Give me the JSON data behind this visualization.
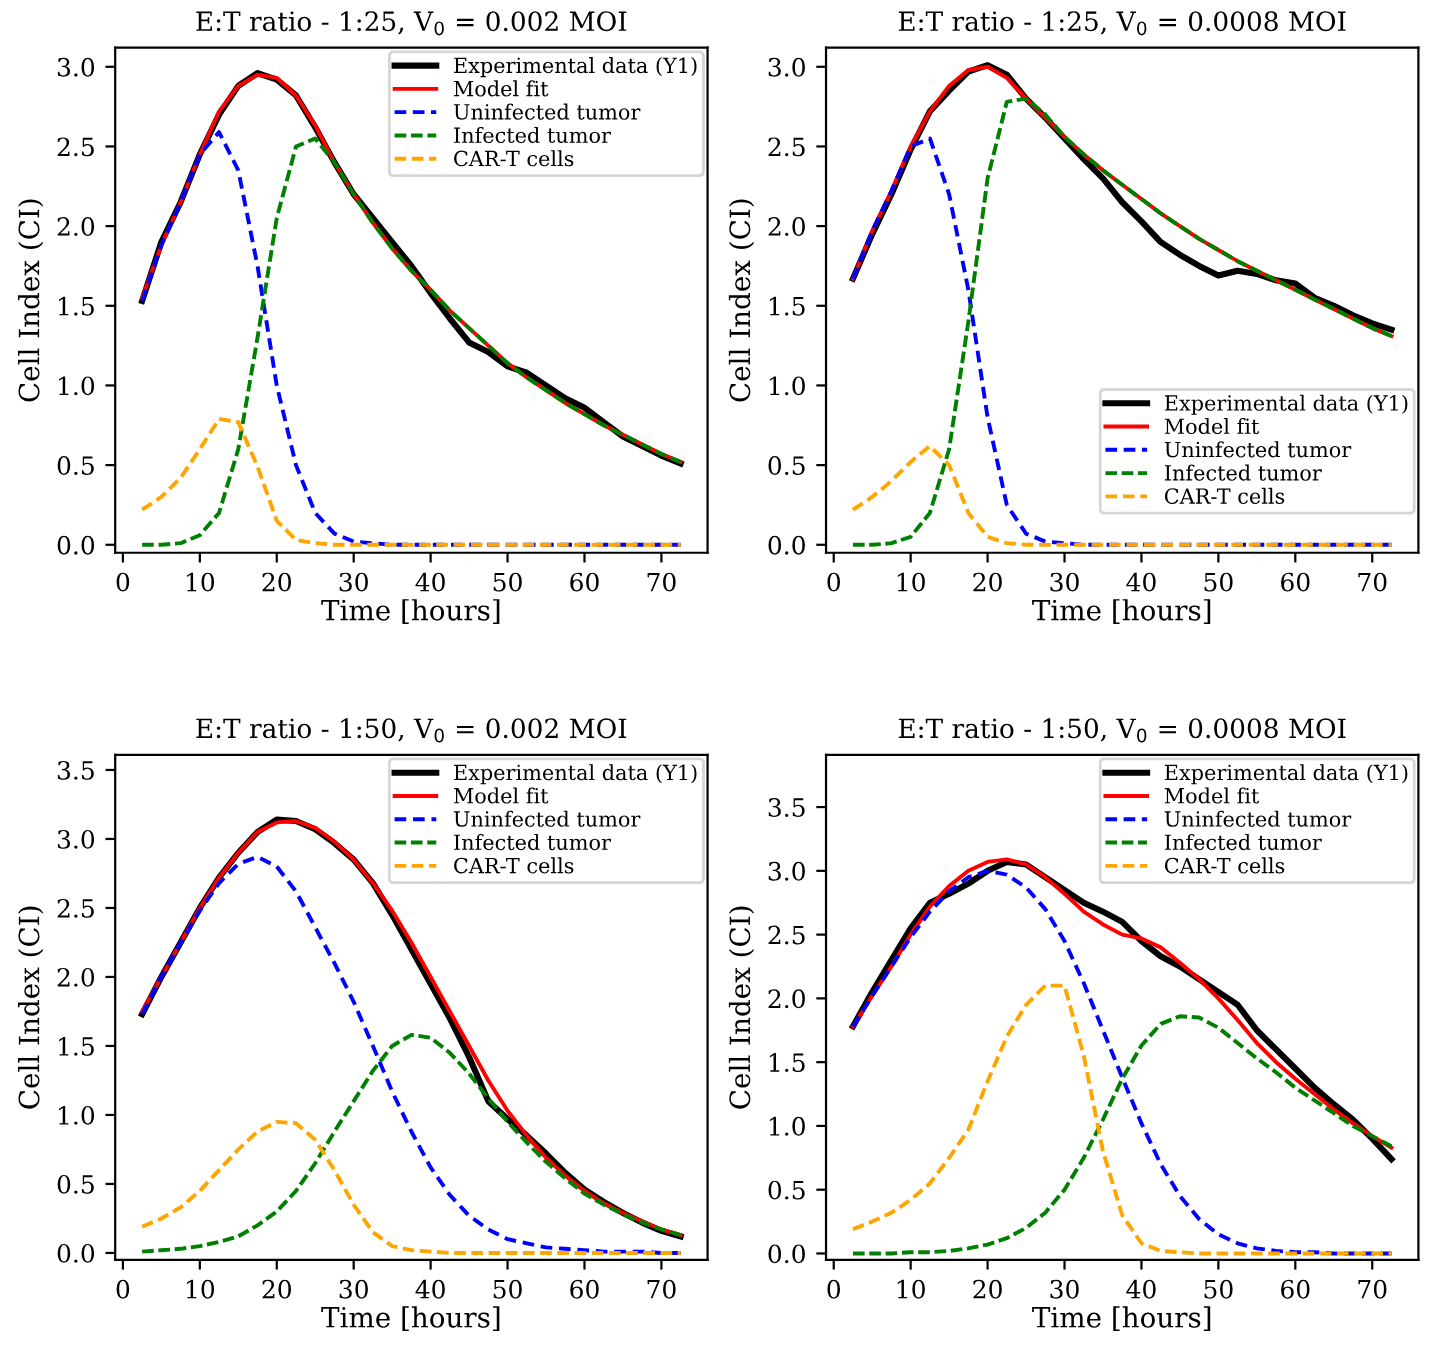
{
  "chart_data": [
    {
      "type": "line",
      "title": "E:T ratio - 1:25, V$_{0}$ = 0.002 MOI",
      "xlabel": "Time [hours]",
      "ylabel": "Cell Index (CI)",
      "legend": "top right",
      "grid": false,
      "marker": "none",
      "x": [
        2.5,
        5,
        7.5,
        10,
        12.5,
        15,
        17.5,
        20,
        22.5,
        25,
        27.5,
        30,
        32.5,
        35,
        37.5,
        40,
        42.5,
        45,
        47.5,
        50,
        52.5,
        55,
        57.5,
        60,
        62.5,
        65,
        67.5,
        70,
        72.5
      ],
      "xlim": [
        -1,
        76
      ],
      "xticks": [
        0,
        10,
        20,
        30,
        40,
        50,
        60,
        70
      ],
      "ylim": [
        -0.05,
        3.12
      ],
      "yticks": [
        {
          "value": 0,
          "label": "0.0"
        },
        {
          "value": 0.5,
          "label": "0.5"
        },
        {
          "value": 1,
          "label": "1.0"
        },
        {
          "value": 1.5,
          "label": "1.5"
        },
        {
          "value": 2,
          "label": "2.0"
        },
        {
          "value": 2.5,
          "label": "2.5"
        },
        {
          "value": 3,
          "label": "3.0"
        }
      ],
      "series": [
        {
          "name": "Experimental data (Y1)",
          "color": "#000000",
          "line_style": "solid",
          "values": [
            1.53,
            1.9,
            2.15,
            2.45,
            2.7,
            2.88,
            2.96,
            2.92,
            2.82,
            2.62,
            2.4,
            2.2,
            2.05,
            1.9,
            1.75,
            1.58,
            1.42,
            1.27,
            1.21,
            1.12,
            1.08,
            1.0,
            0.92,
            0.86,
            0.77,
            0.68,
            0.62,
            0.56,
            0.51
          ]
        },
        {
          "name": "Model fit",
          "color": "#ff0000",
          "line_style": "solid",
          "values": [
            1.55,
            1.88,
            2.15,
            2.45,
            2.72,
            2.88,
            2.95,
            2.93,
            2.82,
            2.63,
            2.4,
            2.2,
            2.02,
            1.86,
            1.72,
            1.6,
            1.47,
            1.36,
            1.25,
            1.14,
            1.05,
            0.97,
            0.89,
            0.82,
            0.75,
            0.69,
            0.63,
            0.57,
            0.52
          ]
        },
        {
          "name": "Uninfected tumor",
          "color": "#0000ff",
          "line_style": "dashed",
          "values": [
            1.53,
            1.88,
            2.15,
            2.45,
            2.59,
            2.35,
            1.75,
            1.0,
            0.5,
            0.2,
            0.07,
            0.02,
            0.01,
            0,
            0,
            0,
            0,
            0,
            0,
            0,
            0,
            0,
            0,
            0,
            0,
            0,
            0,
            0,
            0
          ]
        },
        {
          "name": "Infected tumor",
          "color": "#008000",
          "line_style": "dashed",
          "values": [
            0,
            0,
            0.01,
            0.06,
            0.2,
            0.6,
            1.3,
            2.05,
            2.5,
            2.55,
            2.4,
            2.2,
            2.02,
            1.86,
            1.72,
            1.6,
            1.47,
            1.36,
            1.25,
            1.14,
            1.05,
            0.97,
            0.89,
            0.82,
            0.75,
            0.69,
            0.63,
            0.57,
            0.52
          ]
        },
        {
          "name": "CAR-T cells",
          "color": "#ffa500",
          "line_style": "dashed",
          "values": [
            0.22,
            0.3,
            0.42,
            0.6,
            0.79,
            0.77,
            0.49,
            0.15,
            0.03,
            0.01,
            0,
            0,
            0,
            0,
            0,
            0,
            0,
            0,
            0,
            0,
            0,
            0,
            0,
            0,
            0,
            0,
            0,
            0,
            0
          ]
        }
      ]
    },
    {
      "type": "line",
      "title": "E:T ratio - 1:25, V$_{0}$ = 0.0008 MOI",
      "xlabel": "Time [hours]",
      "ylabel": "Cell Index (CI)",
      "legend": "bottom right",
      "grid": false,
      "marker": "none",
      "x": [
        2.5,
        5,
        7.5,
        10,
        12.5,
        15,
        17.5,
        20,
        22.5,
        25,
        27.5,
        30,
        32.5,
        35,
        37.5,
        40,
        42.5,
        45,
        47.5,
        50,
        52.5,
        55,
        57.5,
        60,
        62.5,
        65,
        67.5,
        70,
        72.5
      ],
      "xlim": [
        -1,
        76
      ],
      "xticks": [
        0,
        10,
        20,
        30,
        40,
        50,
        60,
        70
      ],
      "ylim": [
        -0.05,
        3.12
      ],
      "yticks": [
        {
          "value": 0,
          "label": "0.0"
        },
        {
          "value": 0.5,
          "label": "0.5"
        },
        {
          "value": 1,
          "label": "1.0"
        },
        {
          "value": 1.5,
          "label": "1.5"
        },
        {
          "value": 2,
          "label": "2.0"
        },
        {
          "value": 2.5,
          "label": "2.5"
        },
        {
          "value": 3,
          "label": "3.0"
        }
      ],
      "series": [
        {
          "name": "Experimental data (Y1)",
          "color": "#000000",
          "line_style": "solid",
          "values": [
            1.67,
            1.95,
            2.2,
            2.48,
            2.72,
            2.85,
            2.97,
            3.01,
            2.95,
            2.8,
            2.68,
            2.55,
            2.42,
            2.3,
            2.15,
            2.03,
            1.9,
            1.82,
            1.75,
            1.69,
            1.72,
            1.7,
            1.66,
            1.64,
            1.55,
            1.5,
            1.44,
            1.39,
            1.35
          ]
        },
        {
          "name": "Model fit",
          "color": "#ff0000",
          "line_style": "solid",
          "values": [
            1.67,
            1.97,
            2.22,
            2.5,
            2.72,
            2.88,
            2.98,
            3.0,
            2.93,
            2.8,
            2.68,
            2.56,
            2.45,
            2.35,
            2.26,
            2.17,
            2.08,
            2.0,
            1.92,
            1.85,
            1.78,
            1.72,
            1.66,
            1.6,
            1.54,
            1.48,
            1.42,
            1.36,
            1.31
          ]
        },
        {
          "name": "Uninfected tumor",
          "color": "#0000ff",
          "line_style": "dashed",
          "values": [
            1.67,
            1.97,
            2.22,
            2.5,
            2.55,
            2.2,
            1.6,
            0.8,
            0.25,
            0.07,
            0.02,
            0.01,
            0,
            0,
            0,
            0,
            0,
            0,
            0,
            0,
            0,
            0,
            0,
            0,
            0,
            0,
            0,
            0,
            0
          ]
        },
        {
          "name": "Infected tumor",
          "color": "#008000",
          "line_style": "dashed",
          "values": [
            0,
            0,
            0.01,
            0.05,
            0.2,
            0.6,
            1.4,
            2.3,
            2.78,
            2.8,
            2.7,
            2.56,
            2.45,
            2.35,
            2.26,
            2.17,
            2.08,
            2.0,
            1.92,
            1.85,
            1.78,
            1.72,
            1.66,
            1.6,
            1.54,
            1.48,
            1.42,
            1.36,
            1.31
          ]
        },
        {
          "name": "CAR-T cells",
          "color": "#ffa500",
          "line_style": "dashed",
          "values": [
            0.22,
            0.3,
            0.4,
            0.52,
            0.62,
            0.5,
            0.2,
            0.05,
            0.01,
            0,
            0,
            0,
            0,
            0,
            0,
            0,
            0,
            0,
            0,
            0,
            0,
            0,
            0,
            0,
            0,
            0,
            0,
            0,
            0
          ]
        }
      ]
    },
    {
      "type": "line",
      "title": "E:T ratio - 1:50, V$_{0}$ = 0.002 MOI",
      "xlabel": "Time [hours]",
      "ylabel": "Cell Index (CI)",
      "legend": "top right",
      "grid": false,
      "marker": "none",
      "x": [
        2.5,
        5,
        7.5,
        10,
        12.5,
        15,
        17.5,
        20,
        22.5,
        25,
        27.5,
        30,
        32.5,
        35,
        37.5,
        40,
        42.5,
        45,
        47.5,
        50,
        52.5,
        55,
        57.5,
        60,
        62.5,
        65,
        67.5,
        70,
        72.5
      ],
      "xlim": [
        -1,
        76
      ],
      "xticks": [
        0,
        10,
        20,
        30,
        40,
        50,
        60,
        70
      ],
      "ylim": [
        -0.05,
        3.61
      ],
      "yticks": [
        {
          "value": 0,
          "label": "0.0"
        },
        {
          "value": 0.5,
          "label": "0.5"
        },
        {
          "value": 1,
          "label": "1.0"
        },
        {
          "value": 1.5,
          "label": "1.5"
        },
        {
          "value": 2,
          "label": "2.0"
        },
        {
          "value": 2.5,
          "label": "2.5"
        },
        {
          "value": 3,
          "label": "3.0"
        },
        {
          "value": 3.5,
          "label": "3.5"
        }
      ],
      "series": [
        {
          "name": "Experimental data (Y1)",
          "color": "#000000",
          "line_style": "solid",
          "values": [
            1.73,
            2.0,
            2.25,
            2.5,
            2.72,
            2.9,
            3.05,
            3.14,
            3.13,
            3.07,
            2.97,
            2.85,
            2.68,
            2.45,
            2.2,
            1.95,
            1.7,
            1.42,
            1.1,
            0.97,
            0.85,
            0.72,
            0.58,
            0.46,
            0.37,
            0.29,
            0.22,
            0.16,
            0.12
          ]
        },
        {
          "name": "Model fit",
          "color": "#ff0000",
          "line_style": "solid",
          "values": [
            1.75,
            2.0,
            2.25,
            2.5,
            2.72,
            2.9,
            3.05,
            3.12,
            3.13,
            3.08,
            2.98,
            2.85,
            2.68,
            2.48,
            2.25,
            2.0,
            1.75,
            1.5,
            1.25,
            1.03,
            0.85,
            0.69,
            0.56,
            0.45,
            0.36,
            0.29,
            0.23,
            0.17,
            0.13
          ]
        },
        {
          "name": "Uninfected tumor",
          "color": "#0000ff",
          "line_style": "dashed",
          "values": [
            1.73,
            2.0,
            2.25,
            2.48,
            2.68,
            2.82,
            2.87,
            2.8,
            2.62,
            2.36,
            2.1,
            1.82,
            1.5,
            1.17,
            0.88,
            0.62,
            0.42,
            0.27,
            0.17,
            0.1,
            0.07,
            0.04,
            0.03,
            0.02,
            0.01,
            0.01,
            0.01,
            0,
            0
          ]
        },
        {
          "name": "Infected tumor",
          "color": "#008000",
          "line_style": "dashed",
          "values": [
            0.01,
            0.02,
            0.03,
            0.05,
            0.08,
            0.12,
            0.2,
            0.3,
            0.45,
            0.65,
            0.88,
            1.1,
            1.32,
            1.5,
            1.58,
            1.56,
            1.45,
            1.3,
            1.12,
            0.95,
            0.8,
            0.66,
            0.54,
            0.43,
            0.35,
            0.28,
            0.22,
            0.17,
            0.13
          ]
        },
        {
          "name": "CAR-T cells",
          "color": "#ffa500",
          "line_style": "dashed",
          "values": [
            0.19,
            0.25,
            0.33,
            0.45,
            0.6,
            0.75,
            0.88,
            0.95,
            0.94,
            0.82,
            0.6,
            0.35,
            0.15,
            0.05,
            0.02,
            0.01,
            0,
            0,
            0,
            0,
            0,
            0,
            0,
            0,
            0,
            0,
            0,
            0,
            0
          ]
        }
      ]
    },
    {
      "type": "line",
      "title": "E:T ratio - 1:50, V$_{0}$ = 0.0008 MOI",
      "xlabel": "Time [hours]",
      "ylabel": "Cell Index (CI)",
      "legend": "top right",
      "grid": false,
      "marker": "none",
      "x": [
        2.5,
        5,
        7.5,
        10,
        12.5,
        15,
        17.5,
        20,
        22.5,
        25,
        27.5,
        30,
        32.5,
        35,
        37.5,
        40,
        42.5,
        45,
        47.5,
        50,
        52.5,
        55,
        57.5,
        60,
        62.5,
        65,
        67.5,
        70,
        72.5
      ],
      "xlim": [
        -1,
        76
      ],
      "xticks": [
        0,
        10,
        20,
        30,
        40,
        50,
        60,
        70
      ],
      "ylim": [
        -0.05,
        3.91
      ],
      "yticks": [
        {
          "value": 0,
          "label": "0.0"
        },
        {
          "value": 0.5,
          "label": "0.5"
        },
        {
          "value": 1,
          "label": "1.0"
        },
        {
          "value": 1.5,
          "label": "1.5"
        },
        {
          "value": 2,
          "label": "2.0"
        },
        {
          "value": 2.5,
          "label": "2.5"
        },
        {
          "value": 3,
          "label": "3.0"
        },
        {
          "value": 3.5,
          "label": "3.5"
        }
      ],
      "series": [
        {
          "name": "Experimental data (Y1)",
          "color": "#000000",
          "line_style": "solid",
          "values": [
            1.78,
            2.05,
            2.3,
            2.55,
            2.75,
            2.82,
            2.9,
            3.0,
            3.07,
            3.05,
            2.95,
            2.85,
            2.75,
            2.68,
            2.6,
            2.45,
            2.33,
            2.25,
            2.15,
            2.05,
            1.95,
            1.75,
            1.6,
            1.45,
            1.3,
            1.17,
            1.05,
            0.9,
            0.74
          ]
        },
        {
          "name": "Model fit",
          "color": "#ff0000",
          "line_style": "solid",
          "values": [
            1.78,
            2.02,
            2.25,
            2.5,
            2.72,
            2.88,
            3.0,
            3.07,
            3.09,
            3.05,
            2.95,
            2.82,
            2.68,
            2.58,
            2.5,
            2.47,
            2.4,
            2.28,
            2.15,
            2.0,
            1.83,
            1.65,
            1.5,
            1.37,
            1.25,
            1.13,
            1.02,
            0.92,
            0.83
          ]
        },
        {
          "name": "Uninfected tumor",
          "color": "#0000ff",
          "line_style": "dashed",
          "values": [
            1.78,
            2.02,
            2.25,
            2.48,
            2.68,
            2.84,
            2.95,
            3.0,
            2.97,
            2.87,
            2.7,
            2.45,
            2.12,
            1.75,
            1.38,
            1.02,
            0.7,
            0.45,
            0.27,
            0.15,
            0.08,
            0.04,
            0.02,
            0.01,
            0.01,
            0,
            0,
            0,
            0
          ]
        },
        {
          "name": "Infected tumor",
          "color": "#008000",
          "line_style": "dashed",
          "values": [
            0,
            0,
            0,
            0.01,
            0.01,
            0.02,
            0.04,
            0.07,
            0.12,
            0.2,
            0.32,
            0.5,
            0.75,
            1.05,
            1.37,
            1.63,
            1.8,
            1.86,
            1.85,
            1.77,
            1.65,
            1.53,
            1.42,
            1.3,
            1.2,
            1.1,
            1.0,
            0.92,
            0.84
          ]
        },
        {
          "name": "CAR-T cells",
          "color": "#ffa500",
          "line_style": "dashed",
          "values": [
            0.19,
            0.25,
            0.32,
            0.42,
            0.55,
            0.75,
            0.97,
            1.35,
            1.7,
            1.95,
            2.1,
            2.1,
            1.55,
            0.8,
            0.3,
            0.08,
            0.02,
            0.01,
            0,
            0,
            0,
            0,
            0,
            0,
            0,
            0,
            0,
            0,
            0
          ]
        }
      ]
    }
  ]
}
